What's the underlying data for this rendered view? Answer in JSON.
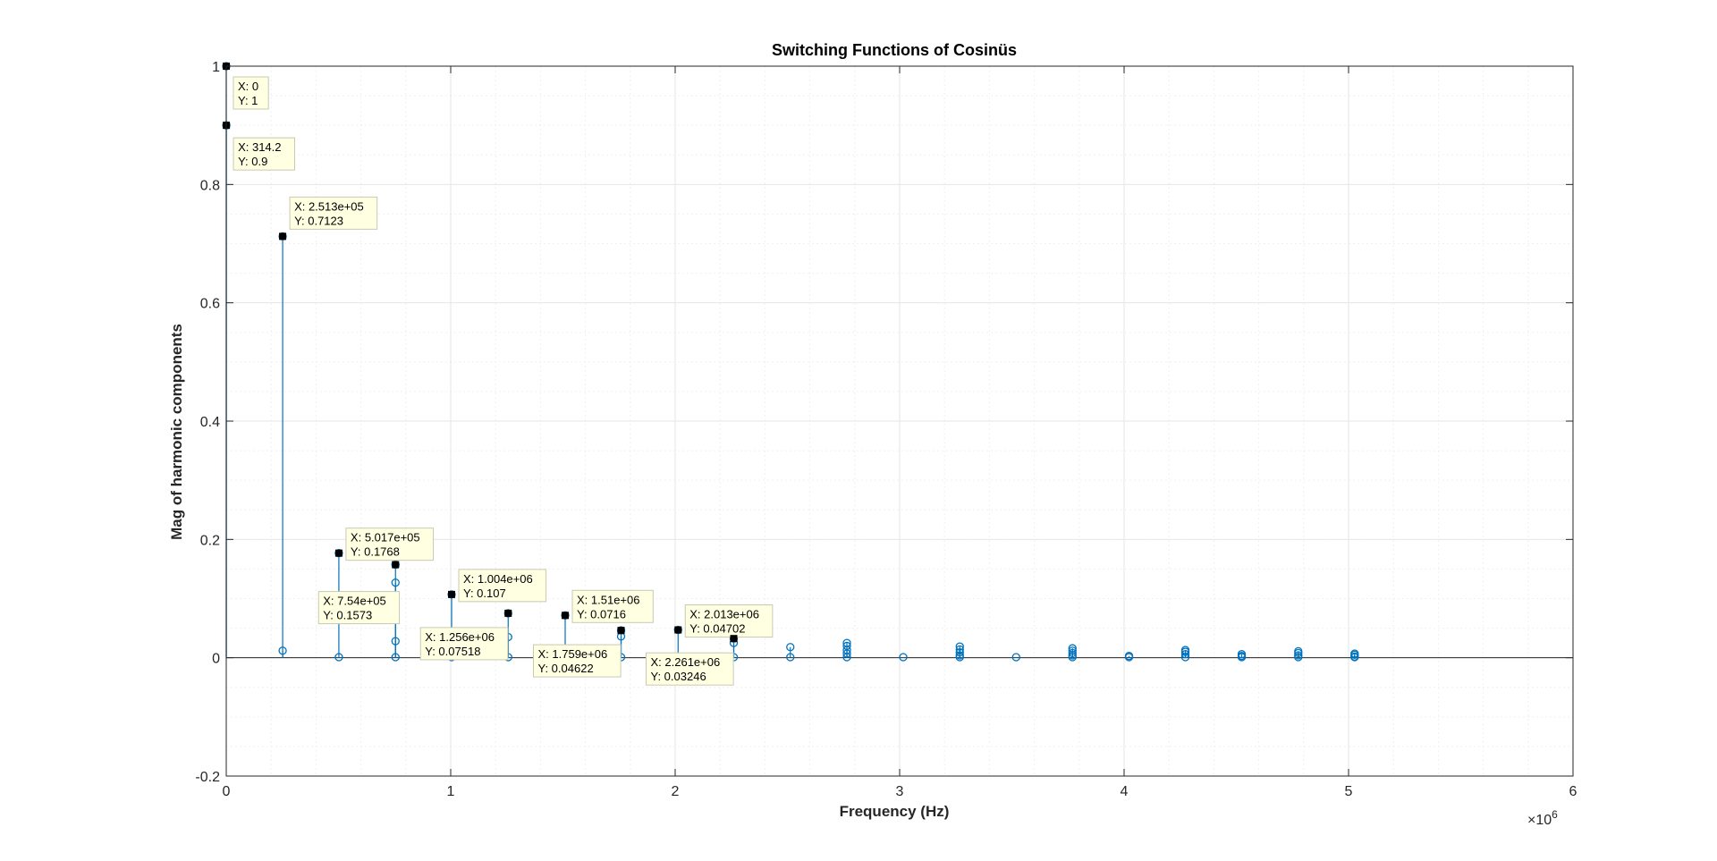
{
  "chart_data": {
    "type": "stem",
    "title": "Switching Functions of Cosinüs",
    "xlabel": "Frequency (Hz)",
    "ylabel": "Mag of harmonic components",
    "x_multiplier_label": "×10",
    "x_multiplier_exponent": "6",
    "xlim": [
      0,
      6000000
    ],
    "ylim": [
      -0.2,
      1
    ],
    "x_ticks": [
      0,
      1000000,
      2000000,
      3000000,
      4000000,
      5000000,
      6000000
    ],
    "x_tick_labels": [
      "0",
      "1",
      "2",
      "3",
      "4",
      "5",
      "6"
    ],
    "y_ticks": [
      -0.2,
      0,
      0.2,
      0.4,
      0.6,
      0.8,
      1
    ],
    "y_tick_labels": [
      "-0.2",
      "0",
      "0.2",
      "0.4",
      "0.6",
      "0.8",
      "1"
    ],
    "grid": true,
    "minor_grid": true,
    "colors": {
      "stem": "#0072BD",
      "marker": "#000000",
      "grid": "#e6e6e6",
      "axis": "#262626",
      "tip_bg": "#ffffe1"
    },
    "series": [
      {
        "x": [
          0,
          314.2,
          251300,
          251300,
          501700,
          501700,
          754000,
          754000,
          754000,
          754000,
          1004000,
          1004000,
          1256000,
          1256000,
          1256000,
          1510000,
          1510000,
          1759000,
          1759000,
          1759000,
          2013000,
          2013000,
          2261000,
          2261000,
          2261000,
          2513000,
          2513000,
          2765000,
          2765000,
          2765000,
          2765000,
          2765000,
          3016000,
          3268000,
          3268000,
          3268000,
          3268000,
          3268000,
          3519000,
          3770000,
          3770000,
          3770000,
          3770000,
          3770000,
          4022000,
          4022000,
          4273000,
          4273000,
          4273000,
          4273000,
          4524000,
          4524000,
          4524000,
          4776000,
          4776000,
          4776000,
          4776000,
          5027000,
          5027000,
          5027000,
          5027000
        ],
        "y": [
          1,
          0.9,
          0.7123,
          0.012,
          0.1768,
          0.001,
          0.1573,
          0.127,
          0.028,
          0.001,
          0.107,
          0.001,
          0.07518,
          0.035,
          0.001,
          0.0716,
          0.001,
          0.04622,
          0.036,
          0.001,
          0.04702,
          0.001,
          0.03246,
          0.025,
          0.001,
          0.018,
          0.001,
          0.025,
          0.02,
          0.013,
          0.007,
          0.001,
          0.001,
          0.019,
          0.014,
          0.009,
          0.004,
          0.001,
          0.001,
          0.016,
          0.012,
          0.008,
          0.004,
          0.001,
          0.003,
          0.001,
          0.013,
          0.01,
          0.006,
          0.001,
          0.006,
          0.003,
          0.001,
          0.011,
          0.008,
          0.004,
          0.001,
          0.007,
          0.005,
          0.002,
          0.001
        ]
      }
    ],
    "datatips": [
      {
        "x_label": "X: 0",
        "y_label": "Y: 1",
        "x": 0,
        "y": 1
      },
      {
        "x_label": "X: 314.2",
        "y_label": "Y: 0.9",
        "x": 314.2,
        "y": 0.9
      },
      {
        "x_label": "X: 2.513e+05",
        "y_label": "Y: 0.7123",
        "x": 251300,
        "y": 0.7123
      },
      {
        "x_label": "X: 5.017e+05",
        "y_label": "Y: 0.1768",
        "x": 501700,
        "y": 0.1768
      },
      {
        "x_label": "X: 7.54e+05",
        "y_label": "Y: 0.1573",
        "x": 754000,
        "y": 0.1573
      },
      {
        "x_label": "X: 1.004e+06",
        "y_label": "Y: 0.107",
        "x": 1004000,
        "y": 0.107
      },
      {
        "x_label": "X: 1.256e+06",
        "y_label": "Y: 0.07518",
        "x": 1256000,
        "y": 0.07518
      },
      {
        "x_label": "X: 1.51e+06",
        "y_label": "Y: 0.0716",
        "x": 1510000,
        "y": 0.0716
      },
      {
        "x_label": "X: 1.759e+06",
        "y_label": "Y: 0.04622",
        "x": 1759000,
        "y": 0.04622
      },
      {
        "x_label": "X: 2.013e+06",
        "y_label": "Y: 0.04702",
        "x": 2013000,
        "y": 0.04702
      },
      {
        "x_label": "X: 2.261e+06",
        "y_label": "Y: 0.03246",
        "x": 2261000,
        "y": 0.03246
      }
    ]
  }
}
